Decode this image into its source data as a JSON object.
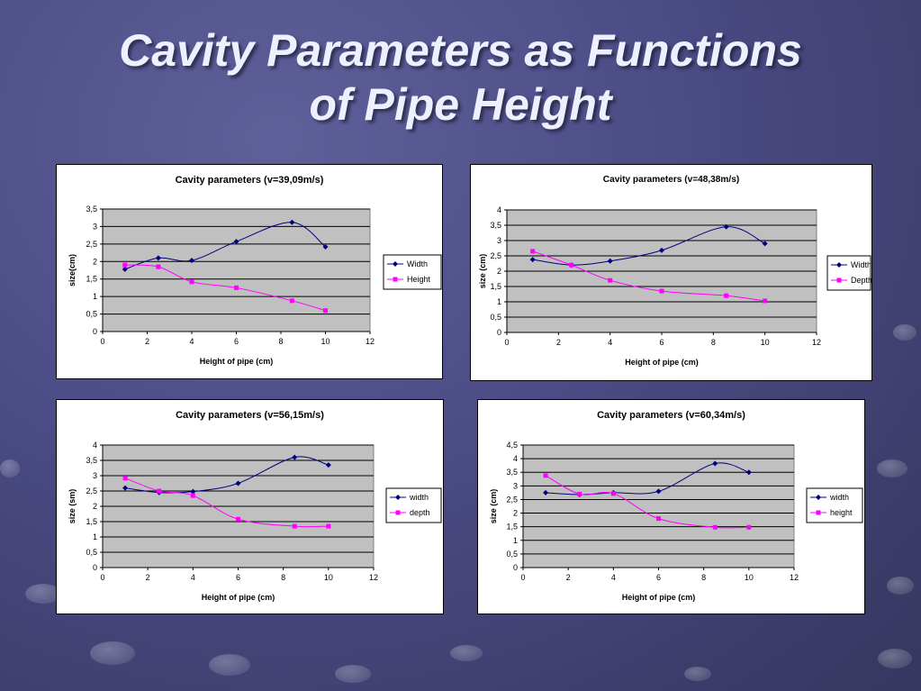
{
  "slide": {
    "title_line1": "Cavity Parameters as Functions",
    "title_line2": "of Pipe Height"
  },
  "colors": {
    "series1": "#00007f",
    "series2": "#ff00ff",
    "plot_bg": "#c0c0c0"
  },
  "chart_data": [
    {
      "type": "line",
      "title": "Cavity parameters (v=39,09m/s)",
      "xlabel": "Height of pipe (cm)",
      "ylabel": "size(cm)",
      "xlim": [
        0,
        12
      ],
      "xstep": 2,
      "ylim": [
        0,
        3.5
      ],
      "ystep": 0.5,
      "xticks": [
        "0",
        "2",
        "4",
        "6",
        "8",
        "10",
        "12"
      ],
      "yticks": [
        "0",
        "0,5",
        "1",
        "1,5",
        "2",
        "2,5",
        "3",
        "3,5"
      ],
      "grid": true,
      "legend": "right",
      "series": [
        {
          "name": "Width",
          "x": [
            1,
            2.5,
            4,
            6,
            8.5,
            10
          ],
          "values": [
            1.78,
            2.1,
            2.03,
            2.57,
            3.12,
            2.42
          ]
        },
        {
          "name": "Height",
          "x": [
            1,
            2.5,
            4,
            6,
            8.5,
            10
          ],
          "values": [
            1.9,
            1.85,
            1.42,
            1.25,
            0.88,
            0.6
          ]
        }
      ]
    },
    {
      "type": "line",
      "title": "Cavity parameters (v=48,38m/s)",
      "xlabel": "Height of pipe (cm)",
      "ylabel": "size (cm)",
      "xlim": [
        0,
        12
      ],
      "xstep": 2,
      "ylim": [
        0,
        4
      ],
      "ystep": 0.5,
      "xticks": [
        "0",
        "2",
        "4",
        "6",
        "8",
        "10",
        "12"
      ],
      "yticks": [
        "0",
        "0,5",
        "1",
        "1,5",
        "2",
        "2,5",
        "3",
        "3,5",
        "4"
      ],
      "grid": true,
      "legend": "right",
      "series": [
        {
          "name": "Width",
          "x": [
            1,
            2.5,
            4,
            6,
            8.5,
            10
          ],
          "values": [
            2.38,
            2.2,
            2.33,
            2.68,
            3.45,
            2.9
          ]
        },
        {
          "name": "Depth",
          "x": [
            1,
            2.5,
            4,
            6,
            8.5,
            10
          ],
          "values": [
            2.65,
            2.2,
            1.7,
            1.35,
            1.2,
            1.03
          ]
        }
      ]
    },
    {
      "type": "line",
      "title": "Cavity parameters (v=56,15m/s)",
      "xlabel": "Height of pipe (cm)",
      "ylabel": "size (sm)",
      "xlim": [
        0,
        12
      ],
      "xstep": 2,
      "ylim": [
        0,
        4
      ],
      "ystep": 0.5,
      "xticks": [
        "0",
        "2",
        "4",
        "6",
        "8",
        "10",
        "12"
      ],
      "yticks": [
        "0",
        "0,5",
        "1",
        "1,5",
        "2",
        "2,5",
        "3",
        "3,5",
        "4"
      ],
      "grid": true,
      "legend": "right",
      "series": [
        {
          "name": "width",
          "x": [
            1,
            2.5,
            4,
            6,
            8.5,
            10
          ],
          "values": [
            2.6,
            2.45,
            2.48,
            2.75,
            3.6,
            3.35
          ]
        },
        {
          "name": "depth",
          "x": [
            1,
            2.5,
            4,
            6,
            8.5,
            10
          ],
          "values": [
            2.92,
            2.5,
            2.35,
            1.58,
            1.35,
            1.35
          ]
        }
      ]
    },
    {
      "type": "line",
      "title": "Cavity parameters (v=60,34m/s)",
      "xlabel": "Height of pipe (cm)",
      "ylabel": "size (cm)",
      "xlim": [
        0,
        12
      ],
      "xstep": 2,
      "ylim": [
        0,
        4.5
      ],
      "ystep": 0.5,
      "xticks": [
        "0",
        "2",
        "4",
        "6",
        "8",
        "10",
        "12"
      ],
      "yticks": [
        "0",
        "0,5",
        "1",
        "1,5",
        "2",
        "2,5",
        "3",
        "3,5",
        "4",
        "4,5"
      ],
      "grid": true,
      "legend": "right",
      "series": [
        {
          "name": "width",
          "x": [
            1,
            2.5,
            4,
            6,
            8.5,
            10
          ],
          "values": [
            2.75,
            2.68,
            2.75,
            2.8,
            3.82,
            3.5
          ]
        },
        {
          "name": "height",
          "x": [
            1,
            2.5,
            4,
            6,
            8.5,
            10
          ],
          "values": [
            3.38,
            2.7,
            2.72,
            1.8,
            1.48,
            1.48
          ]
        }
      ]
    }
  ]
}
